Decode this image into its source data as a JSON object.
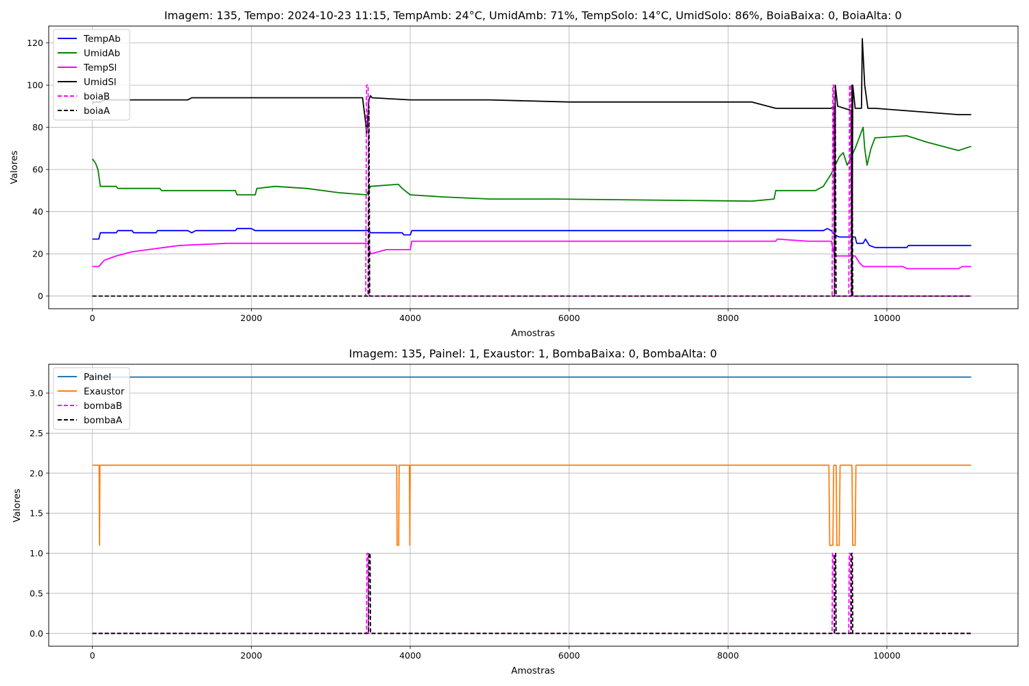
{
  "chart_data": [
    {
      "type": "line",
      "title": "Imagem: 135, Tempo: 2024-10-23 11:15, TempAmb: 24°C, UmidAmb: 71%, TempSolo: 14°C, UmidSolo: 86%, BoiaBaixa: 0, BoiaAlta: 0",
      "xlabel": "Amostras",
      "ylabel": "Valores",
      "xlim": [
        -550,
        11650
      ],
      "ylim": [
        -6,
        128
      ],
      "xticks": [
        0,
        2000,
        4000,
        6000,
        8000,
        10000
      ],
      "yticks": [
        0,
        20,
        40,
        60,
        80,
        100,
        120
      ],
      "grid": true,
      "legend_position": "top-left",
      "series": [
        {
          "name": "TempAb",
          "color": "#0000ff",
          "dash": "solid",
          "points": [
            [
              0,
              27
            ],
            [
              80,
              27
            ],
            [
              100,
              30
            ],
            [
              300,
              30
            ],
            [
              320,
              31
            ],
            [
              500,
              31
            ],
            [
              520,
              30
            ],
            [
              800,
              30
            ],
            [
              820,
              31
            ],
            [
              1200,
              31
            ],
            [
              1250,
              30
            ],
            [
              1300,
              31
            ],
            [
              1800,
              31
            ],
            [
              1820,
              32
            ],
            [
              2000,
              32
            ],
            [
              2050,
              31
            ],
            [
              3480,
              31
            ],
            [
              3500,
              30
            ],
            [
              3900,
              30
            ],
            [
              3920,
              29
            ],
            [
              4000,
              29
            ],
            [
              4020,
              31
            ],
            [
              9200,
              31
            ],
            [
              9250,
              32
            ],
            [
              9300,
              31
            ],
            [
              9340,
              29
            ],
            [
              9400,
              28
            ],
            [
              9600,
              28
            ],
            [
              9620,
              25
            ],
            [
              9700,
              25
            ],
            [
              9730,
              27
            ],
            [
              9780,
              24
            ],
            [
              9850,
              23
            ],
            [
              10250,
              23
            ],
            [
              10270,
              24
            ],
            [
              11060,
              24
            ]
          ]
        },
        {
          "name": "UmidAb",
          "color": "#008000",
          "dash": "solid",
          "points": [
            [
              0,
              65
            ],
            [
              40,
              63
            ],
            [
              70,
              60
            ],
            [
              100,
              52
            ],
            [
              300,
              52
            ],
            [
              320,
              51
            ],
            [
              850,
              51
            ],
            [
              870,
              50
            ],
            [
              1800,
              50
            ],
            [
              1820,
              48
            ],
            [
              2050,
              48
            ],
            [
              2070,
              51
            ],
            [
              2300,
              52
            ],
            [
              2700,
              51
            ],
            [
              3100,
              49
            ],
            [
              3450,
              48
            ],
            [
              3500,
              52
            ],
            [
              3850,
              53
            ],
            [
              3900,
              51
            ],
            [
              4000,
              48
            ],
            [
              4400,
              47
            ],
            [
              5000,
              46
            ],
            [
              5800,
              46
            ],
            [
              5820,
              46
            ],
            [
              8300,
              45
            ],
            [
              8580,
              46
            ],
            [
              8600,
              50
            ],
            [
              8800,
              50
            ],
            [
              9100,
              50
            ],
            [
              9200,
              52
            ],
            [
              9300,
              58
            ],
            [
              9350,
              62
            ],
            [
              9400,
              66
            ],
            [
              9450,
              68
            ],
            [
              9500,
              62
            ],
            [
              9550,
              66
            ],
            [
              9600,
              70
            ],
            [
              9650,
              75
            ],
            [
              9700,
              80
            ],
            [
              9720,
              70
            ],
            [
              9750,
              62
            ],
            [
              9800,
              70
            ],
            [
              9850,
              75
            ],
            [
              10250,
              76
            ],
            [
              10500,
              73
            ],
            [
              10900,
              69
            ],
            [
              11060,
              71
            ]
          ]
        },
        {
          "name": "TempSl",
          "color": "#ff00ff",
          "dash": "solid",
          "points": [
            [
              0,
              14
            ],
            [
              80,
              14
            ],
            [
              150,
              17
            ],
            [
              300,
              19
            ],
            [
              500,
              21
            ],
            [
              700,
              22
            ],
            [
              900,
              23
            ],
            [
              1100,
              24
            ],
            [
              1700,
              25
            ],
            [
              3470,
              25
            ],
            [
              3500,
              20
            ],
            [
              3600,
              21
            ],
            [
              3700,
              22
            ],
            [
              4000,
              22
            ],
            [
              4020,
              26
            ],
            [
              8600,
              26
            ],
            [
              8620,
              27
            ],
            [
              9000,
              26
            ],
            [
              9300,
              26
            ],
            [
              9340,
              19
            ],
            [
              9600,
              19
            ],
            [
              9650,
              16
            ],
            [
              9700,
              14
            ],
            [
              10200,
              14
            ],
            [
              10250,
              13
            ],
            [
              10900,
              13
            ],
            [
              10950,
              14
            ],
            [
              11060,
              14
            ]
          ]
        },
        {
          "name": "UmidSl",
          "color": "#000000",
          "dash": "solid",
          "points": [
            [
              0,
              91
            ],
            [
              10,
              92
            ],
            [
              100,
              92
            ],
            [
              150,
              93
            ],
            [
              1200,
              93
            ],
            [
              1250,
              94
            ],
            [
              3400,
              94
            ],
            [
              3420,
              88
            ],
            [
              3440,
              82
            ],
            [
              3450,
              77
            ],
            [
              3480,
              93
            ],
            [
              3500,
              95
            ],
            [
              3520,
              94
            ],
            [
              4000,
              93
            ],
            [
              5000,
              93
            ],
            [
              6000,
              92
            ],
            [
              8300,
              92
            ],
            [
              8600,
              89
            ],
            [
              9300,
              89
            ],
            [
              9330,
              90
            ],
            [
              9340,
              0
            ],
            [
              9350,
              100
            ],
            [
              9380,
              90
            ],
            [
              9550,
              88
            ],
            [
              9560,
              0
            ],
            [
              9570,
              100
            ],
            [
              9600,
              89
            ],
            [
              9680,
              89
            ],
            [
              9690,
              122
            ],
            [
              9720,
              100
            ],
            [
              9760,
              89
            ],
            [
              9850,
              89
            ],
            [
              10200,
              88
            ],
            [
              10900,
              86
            ],
            [
              11060,
              86
            ]
          ]
        },
        {
          "name": "boiaB",
          "color": "#ff00ff",
          "dash": "dashed",
          "points": [
            [
              0,
              0
            ],
            [
              3440,
              0
            ],
            [
              3450,
              100
            ],
            [
              3470,
              100
            ],
            [
              3480,
              0
            ],
            [
              9310,
              0
            ],
            [
              9320,
              100
            ],
            [
              9330,
              100
            ],
            [
              9340,
              0
            ],
            [
              9520,
              0
            ],
            [
              9530,
              100
            ],
            [
              9540,
              100
            ],
            [
              9550,
              0
            ],
            [
              11060,
              0
            ]
          ]
        },
        {
          "name": "boiaA",
          "color": "#000000",
          "dash": "dashed",
          "points": [
            [
              0,
              0
            ],
            [
              3470,
              0
            ],
            [
              3480,
              90
            ],
            [
              3490,
              0
            ],
            [
              9340,
              0
            ],
            [
              9350,
              90
            ],
            [
              9360,
              0
            ],
            [
              9550,
              0
            ],
            [
              9560,
              100
            ],
            [
              9570,
              0
            ],
            [
              11060,
              0
            ]
          ]
        }
      ]
    },
    {
      "type": "line",
      "title": "Imagem: 135, Painel: 1, Exaustor: 1, BombaBaixa: 0, BombaAlta: 0",
      "xlabel": "Amostras",
      "ylabel": "Valores",
      "xlim": [
        -550,
        11650
      ],
      "ylim": [
        -0.16,
        3.36
      ],
      "xticks": [
        0,
        2000,
        4000,
        6000,
        8000,
        10000
      ],
      "yticks": [
        0.0,
        0.5,
        1.0,
        1.5,
        2.0,
        2.5,
        3.0
      ],
      "ytick_labels": [
        "0.0",
        "0.5",
        "1.0",
        "1.5",
        "2.0",
        "2.5",
        "3.0"
      ],
      "grid": true,
      "legend_position": "top-left",
      "series": [
        {
          "name": "Painel",
          "color": "#1f77b4",
          "dash": "solid",
          "points": [
            [
              0,
              3.2
            ],
            [
              11060,
              3.2
            ]
          ]
        },
        {
          "name": "Exaustor",
          "color": "#ff7f0e",
          "dash": "solid",
          "points": [
            [
              0,
              2.1
            ],
            [
              85,
              2.1
            ],
            [
              90,
              1.1
            ],
            [
              95,
              2.1
            ],
            [
              3830,
              2.1
            ],
            [
              3835,
              1.1
            ],
            [
              3855,
              1.1
            ],
            [
              3860,
              2.1
            ],
            [
              3990,
              2.1
            ],
            [
              3995,
              1.1
            ],
            [
              4000,
              2.1
            ],
            [
              9270,
              2.1
            ],
            [
              9280,
              1.1
            ],
            [
              9320,
              1.1
            ],
            [
              9330,
              2.1
            ],
            [
              9360,
              2.1
            ],
            [
              9370,
              1.1
            ],
            [
              9400,
              1.1
            ],
            [
              9410,
              2.1
            ],
            [
              9560,
              2.1
            ],
            [
              9570,
              1.1
            ],
            [
              9600,
              1.1
            ],
            [
              9610,
              2.1
            ],
            [
              11060,
              2.1
            ]
          ]
        },
        {
          "name": "bombaB",
          "color": "#ff00ff",
          "dash": "dashed",
          "points": [
            [
              0,
              0
            ],
            [
              3450,
              0
            ],
            [
              3455,
              1
            ],
            [
              3470,
              1
            ],
            [
              3475,
              0
            ],
            [
              9310,
              0
            ],
            [
              9315,
              1
            ],
            [
              9330,
              1
            ],
            [
              9335,
              0
            ],
            [
              9520,
              0
            ],
            [
              9525,
              1
            ],
            [
              9540,
              1
            ],
            [
              9545,
              0
            ],
            [
              11060,
              0
            ]
          ]
        },
        {
          "name": "bombaA",
          "color": "#000000",
          "dash": "dashed",
          "points": [
            [
              0,
              0
            ],
            [
              3475,
              0
            ],
            [
              3480,
              1
            ],
            [
              3495,
              1
            ],
            [
              3500,
              0
            ],
            [
              9340,
              0
            ],
            [
              9345,
              1
            ],
            [
              9355,
              1
            ],
            [
              9360,
              0
            ],
            [
              9550,
              0
            ],
            [
              9555,
              1
            ],
            [
              9565,
              1
            ],
            [
              9570,
              0
            ],
            [
              11060,
              0
            ]
          ]
        }
      ]
    }
  ]
}
